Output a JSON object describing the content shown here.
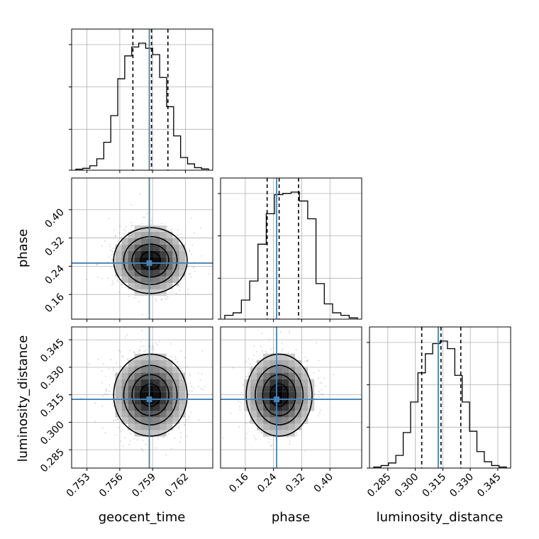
{
  "chart_data": {
    "type": "corner",
    "parameters": [
      "geocent_time",
      "phase",
      "luminosity_distance"
    ],
    "axis_labels": {
      "geocent_time": "geocent_time",
      "phase": "phase",
      "luminosity_distance": "luminosity_distance"
    },
    "ranges": {
      "geocent_time": [
        0.7516,
        0.7645
      ],
      "phase": [
        0.09,
        0.49
      ],
      "luminosity_distance": [
        0.275,
        0.352
      ]
    },
    "ticks": {
      "geocent_time": {
        "values": [
          0.753,
          0.756,
          0.759,
          0.762
        ],
        "labels": [
          "0.753",
          "0.756",
          "0.759",
          "0.762"
        ]
      },
      "phase": {
        "values": [
          0.16,
          0.24,
          0.32,
          0.4
        ],
        "labels": [
          "0.16",
          "0.24",
          "0.32",
          "0.40"
        ]
      },
      "luminosity_distance": {
        "values": [
          0.285,
          0.3,
          0.315,
          0.33,
          0.345
        ],
        "labels": [
          "0.285",
          "0.300",
          "0.315",
          "0.330",
          "0.345"
        ]
      }
    },
    "truths": {
      "geocent_time": 0.7587,
      "phase": 0.2489,
      "luminosity_distance": 0.3125
    },
    "quantiles": {
      "geocent_time": [
        0.7572,
        0.7589,
        0.7604
      ],
      "phase": [
        0.222,
        0.256,
        0.311
      ],
      "luminosity_distance": [
        0.3035,
        0.314,
        0.3248
      ]
    },
    "histograms": {
      "geocent_time": [
        0.008,
        0.015,
        0.035,
        0.09,
        0.22,
        0.43,
        0.72,
        0.9,
        0.97,
        1.0,
        0.96,
        0.91,
        0.73,
        0.5,
        0.27,
        0.1,
        0.05,
        0.02,
        0.01
      ],
      "phase": [
        0.03,
        0.05,
        0.15,
        0.3,
        0.59,
        0.83,
        0.98,
        0.99,
        1.0,
        0.93,
        0.79,
        0.28,
        0.12,
        0.05,
        0.03,
        0.01
      ],
      "luminosity_distance": [
        0.008,
        0.02,
        0.04,
        0.1,
        0.28,
        0.52,
        0.75,
        0.9,
        0.98,
        1.0,
        0.94,
        0.73,
        0.52,
        0.29,
        0.13,
        0.05,
        0.02,
        0.008
      ]
    },
    "posterior_peak": {
      "geocent_time": 0.7588,
      "phase": 0.256,
      "luminosity_distance": 0.3148
    },
    "grid": true,
    "truth_color": "#4682b4",
    "quantile_style": "dashed",
    "contour_color": "#000000"
  }
}
